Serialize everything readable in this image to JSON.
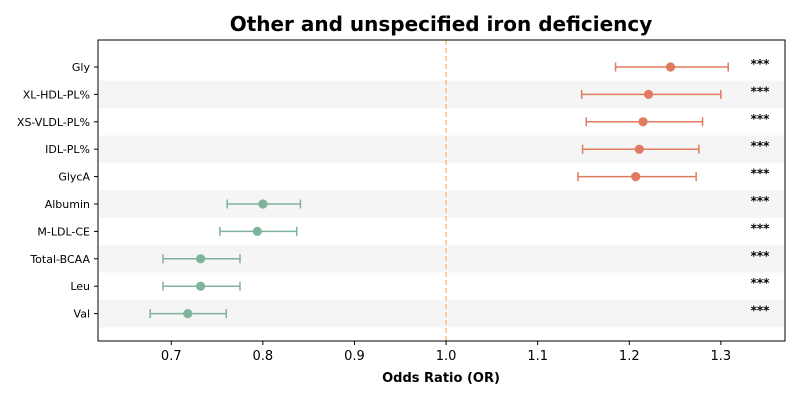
{
  "chart_data": {
    "type": "forest",
    "title": "Other and unspecified iron deficiency",
    "xlabel": "Odds Ratio (OR)",
    "xlim": [
      0.62,
      1.37
    ],
    "xticks": [
      0.7,
      0.8,
      0.9,
      1.0,
      1.1,
      1.2,
      1.3
    ],
    "xtick_labels": [
      "0.7",
      "0.8",
      "0.9",
      "1.0",
      "1.1",
      "1.2",
      "1.3"
    ],
    "reference_line": 1.0,
    "colors": {
      "increase": "#e07b5f",
      "decrease": "#7fb39a",
      "reference": "#f5c27a",
      "band": "#f5f5f5"
    },
    "rows": [
      {
        "label": "Gly",
        "or": 1.245,
        "lower": 1.185,
        "upper": 1.308,
        "significance": "***",
        "direction": "increase"
      },
      {
        "label": "XL-HDL-PL%",
        "or": 1.221,
        "lower": 1.148,
        "upper": 1.3,
        "significance": "***",
        "direction": "increase"
      },
      {
        "label": "XS-VLDL-PL%",
        "or": 1.215,
        "lower": 1.153,
        "upper": 1.28,
        "significance": "***",
        "direction": "increase"
      },
      {
        "label": "IDL-PL%",
        "or": 1.211,
        "lower": 1.149,
        "upper": 1.276,
        "significance": "***",
        "direction": "increase"
      },
      {
        "label": "GlycA",
        "or": 1.207,
        "lower": 1.144,
        "upper": 1.273,
        "significance": "***",
        "direction": "increase"
      },
      {
        "label": "Albumin",
        "or": 0.8,
        "lower": 0.761,
        "upper": 0.841,
        "significance": "***",
        "direction": "decrease"
      },
      {
        "label": "M-LDL-CE",
        "or": 0.794,
        "lower": 0.753,
        "upper": 0.837,
        "significance": "***",
        "direction": "decrease"
      },
      {
        "label": "Total-BCAA",
        "or": 0.732,
        "lower": 0.691,
        "upper": 0.775,
        "significance": "***",
        "direction": "decrease"
      },
      {
        "label": "Leu",
        "or": 0.732,
        "lower": 0.691,
        "upper": 0.775,
        "significance": "***",
        "direction": "decrease"
      },
      {
        "label": "Val",
        "or": 0.718,
        "lower": 0.677,
        "upper": 0.76,
        "significance": "***",
        "direction": "decrease"
      }
    ]
  }
}
